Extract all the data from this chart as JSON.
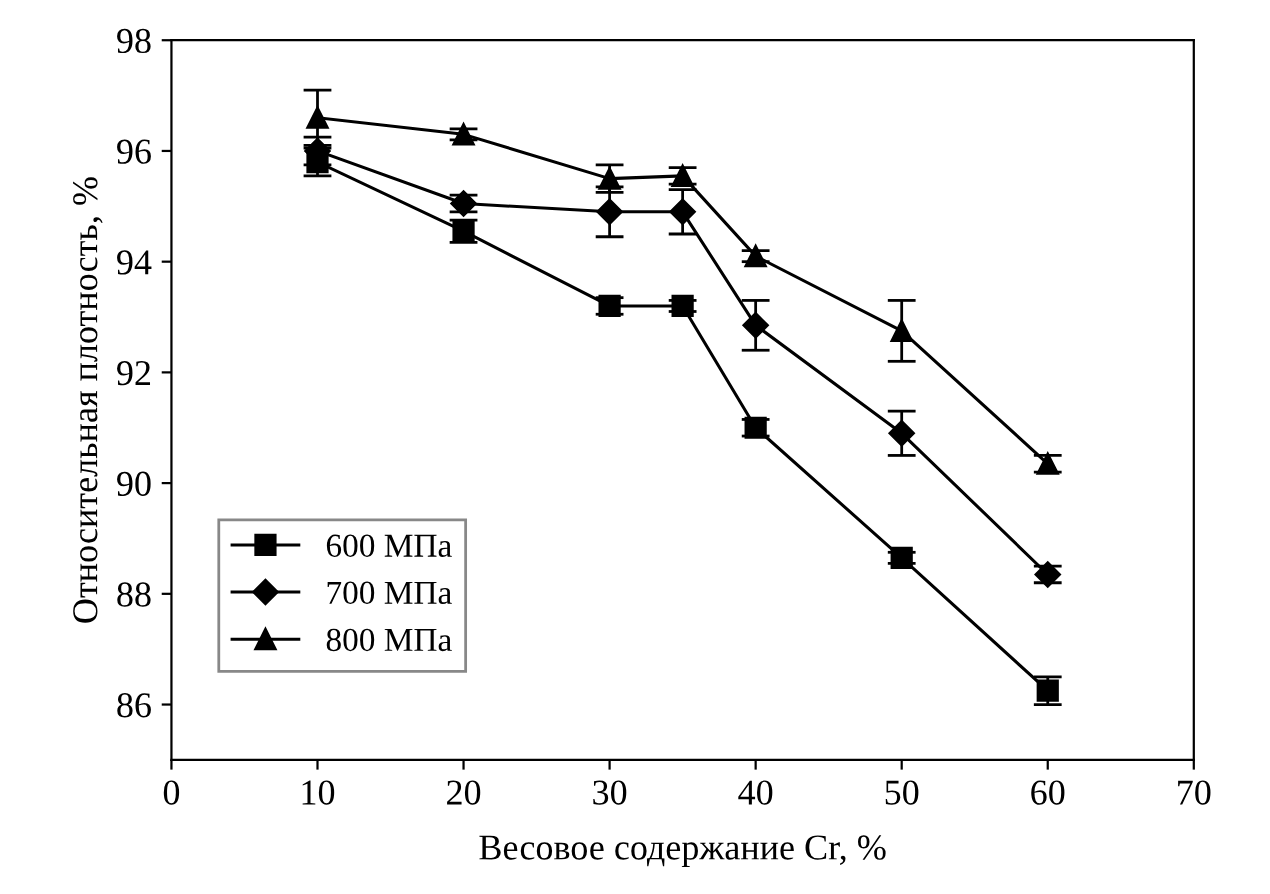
{
  "chart_data": {
    "type": "line",
    "xlabel": "Весовое содержание Cr, %",
    "ylabel": "Относительная плотность, %",
    "x": [
      10,
      20,
      30,
      35,
      40,
      50,
      60
    ],
    "series": [
      {
        "name": "600 МПа",
        "color": "#000000",
        "marker": "square",
        "values": [
          95.8,
          94.55,
          93.2,
          93.2,
          91.0,
          88.65,
          86.25
        ],
        "errors": [
          0.25,
          0.2,
          0.15,
          0.1,
          0.15,
          0.1,
          0.25
        ]
      },
      {
        "name": "700 МПа",
        "color": "#000000",
        "marker": "diamond",
        "values": [
          96.0,
          95.05,
          94.9,
          94.9,
          92.85,
          90.9,
          88.35
        ],
        "errors": [
          0.25,
          0.15,
          0.45,
          0.4,
          0.45,
          0.4,
          0.15
        ]
      },
      {
        "name": "800 МПа",
        "color": "#000000",
        "marker": "triangle",
        "values": [
          96.6,
          96.3,
          95.5,
          95.55,
          94.1,
          92.75,
          90.35
        ],
        "errors": [
          0.5,
          0.1,
          0.25,
          0.15,
          0.1,
          0.55,
          0.15
        ]
      }
    ],
    "xlim": [
      0,
      70
    ],
    "xticks": [
      0,
      10,
      20,
      30,
      40,
      50,
      60,
      70
    ],
    "ylim": [
      85,
      98
    ],
    "yticks": [
      86,
      88,
      90,
      92,
      94,
      96,
      98
    ],
    "grid": false,
    "legend": "bottom left",
    "line_style": "solid"
  }
}
